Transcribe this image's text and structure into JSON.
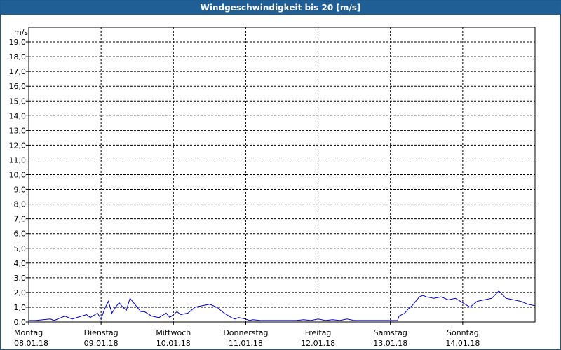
{
  "title": "Windgeschwindigkeit bis 20 [m/s]",
  "chart_data": {
    "type": "line",
    "title": "Windgeschwindigkeit bis 20 [m/s]",
    "ylabel": "m/s",
    "ylim": [
      0,
      20
    ],
    "yticks": [
      "0,0",
      "1,0",
      "2,0",
      "3,0",
      "4,0",
      "5,0",
      "6,0",
      "7,0",
      "8,0",
      "9,0",
      "10,0",
      "11,0",
      "12,0",
      "13,0",
      "14,0",
      "15,0",
      "16,0",
      "17,0",
      "18,0",
      "19,0"
    ],
    "xlim": [
      0,
      7
    ],
    "days": [
      {
        "day": "Montag",
        "date": "08.01.18"
      },
      {
        "day": "Dienstag",
        "date": "09.01.18"
      },
      {
        "day": "Mittwoch",
        "date": "10.01.18"
      },
      {
        "day": "Donnerstag",
        "date": "11.01.18"
      },
      {
        "day": "Freitag",
        "date": "12.01.18"
      },
      {
        "day": "Samstag",
        "date": "13.01.18"
      },
      {
        "day": "Sonntag",
        "date": "14.01.18"
      }
    ],
    "grid": true,
    "line_color": "#0000cc",
    "series": [
      {
        "x": [
          0,
          0.1,
          0.2,
          0.3,
          0.35,
          0.45,
          0.5,
          0.6,
          0.7,
          0.8,
          0.85,
          0.95,
          1.0,
          1.05,
          1.1,
          1.15,
          1.2,
          1.25,
          1.3,
          1.35,
          1.4,
          1.5,
          1.55,
          1.6,
          1.7,
          1.8,
          1.9,
          1.95,
          2.0,
          2.05,
          2.1,
          2.2,
          2.3,
          2.4,
          2.5,
          2.6,
          2.7,
          2.8,
          2.85,
          2.9,
          3.0,
          3.05,
          3.1,
          3.2,
          3.3,
          3.4,
          3.5,
          3.6,
          3.7,
          3.8,
          3.9,
          4.0,
          4.1,
          4.2,
          4.3,
          4.4,
          4.5,
          4.6,
          4.7,
          4.8,
          4.9,
          5.0,
          5.1,
          5.12,
          5.2,
          5.25,
          5.3,
          5.4,
          5.45,
          5.5,
          5.6,
          5.7,
          5.8,
          5.9,
          6.0,
          6.1,
          6.2,
          6.3,
          6.4,
          6.5,
          6.6,
          6.7,
          6.8,
          6.9,
          7.0
        ],
        "y": [
          0.1,
          0.1,
          0.15,
          0.2,
          0.1,
          0.3,
          0.4,
          0.2,
          0.35,
          0.5,
          0.3,
          0.6,
          0.2,
          0.9,
          1.4,
          0.6,
          1.0,
          1.3,
          1.0,
          0.8,
          1.6,
          1.0,
          0.7,
          0.7,
          0.4,
          0.3,
          0.6,
          0.3,
          0.5,
          0.7,
          0.5,
          0.6,
          1.0,
          1.1,
          1.2,
          1.0,
          0.6,
          0.3,
          0.2,
          0.3,
          0.2,
          0.1,
          0.15,
          0.1,
          0.1,
          0.1,
          0.1,
          0.1,
          0.1,
          0.15,
          0.1,
          0.2,
          0.1,
          0.15,
          0.1,
          0.2,
          0.1,
          0.1,
          0.1,
          0.1,
          0.1,
          0.1,
          0.1,
          0.4,
          0.6,
          0.9,
          1.1,
          1.7,
          1.8,
          1.7,
          1.6,
          1.7,
          1.5,
          1.6,
          1.3,
          1.0,
          1.4,
          1.5,
          1.6,
          2.1,
          1.6,
          1.5,
          1.4,
          1.2,
          1.1
        ]
      }
    ]
  }
}
